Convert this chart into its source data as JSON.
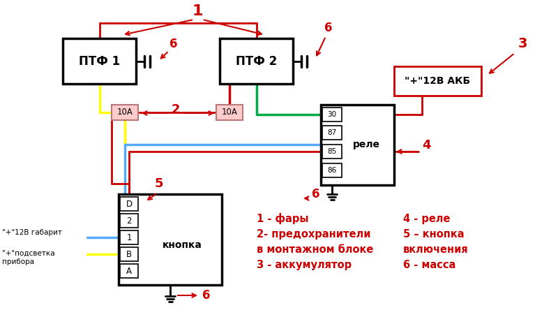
{
  "bg_color": "#ffffff",
  "red": "#cc0000",
  "black": "#000000",
  "blue": "#55aaff",
  "yellow": "#ffff00",
  "green": "#00aa44",
  "pink": "#ffcccc",
  "figsize": [
    8.0,
    4.74
  ],
  "dpi": 100,
  "legend_left": [
    "1 - фары",
    "2- предохранители",
    "в монтажном блоке",
    "3 - аккумулятор"
  ],
  "legend_right": [
    "4 - реле",
    "5 – кнопка",
    "включения",
    "6 - масса"
  ]
}
